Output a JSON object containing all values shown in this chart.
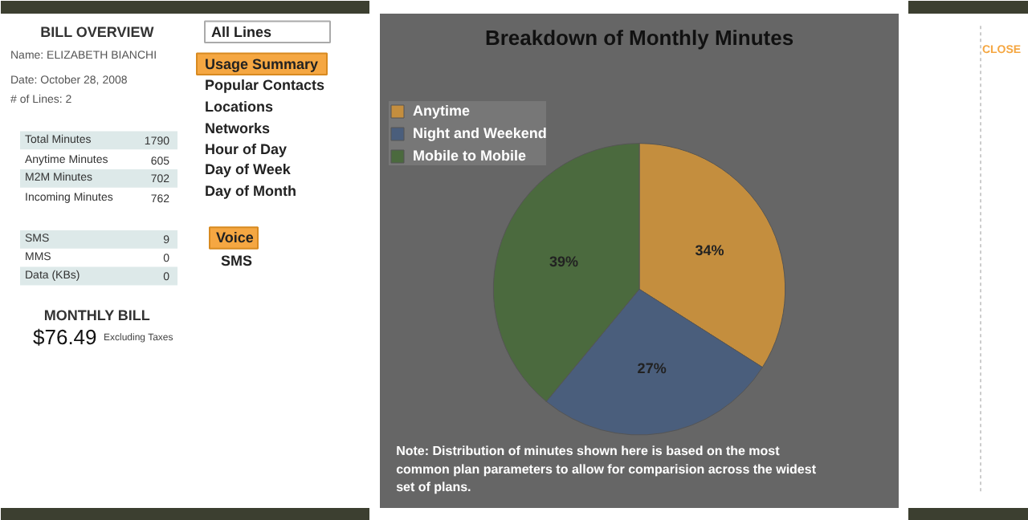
{
  "chart_data": [
    {
      "type": "other",
      "title": "BILL OVERVIEW",
      "annotations": [
        "Name: ELIZABETH BIANCHI",
        "Date: October 28, 2008",
        "# of Lines: 2",
        "Total Minutes",
        "1790",
        "Anytime Minutes",
        "605",
        "M2M Minutes",
        "702",
        "Incoming Minutes",
        "762",
        "SMS",
        "9",
        "MMS",
        "0",
        "Data (KBs)",
        "0",
        "MONTHLY BILL",
        "$76.49",
        "Excluding Taxes",
        "All Lines",
        "Usage Summary",
        "Popular Contacts",
        "Locations",
        "Networks",
        "Hour of Day",
        "Day of Week",
        "Day of Month",
        "Voice",
        "SMS",
        "CLOSE"
      ]
    },
    {
      "type": "pie",
      "title": "Breakdown of Monthly Minutes",
      "categories": [
        "Anytime",
        "Night and Weekend",
        "Mobile to Mobile"
      ],
      "values": [
        34,
        27,
        39
      ],
      "colors": [
        "#c48e3e",
        "#4a5e7c",
        "#4b6a3e"
      ],
      "value_labels": [
        "34%",
        "27%",
        "39%"
      ],
      "legend": "top left",
      "annotations": [
        "Note: Distribution of minutes shown here is based on the most common plan parameters to allow for comparision across the widest set of plans."
      ]
    }
  ]
}
